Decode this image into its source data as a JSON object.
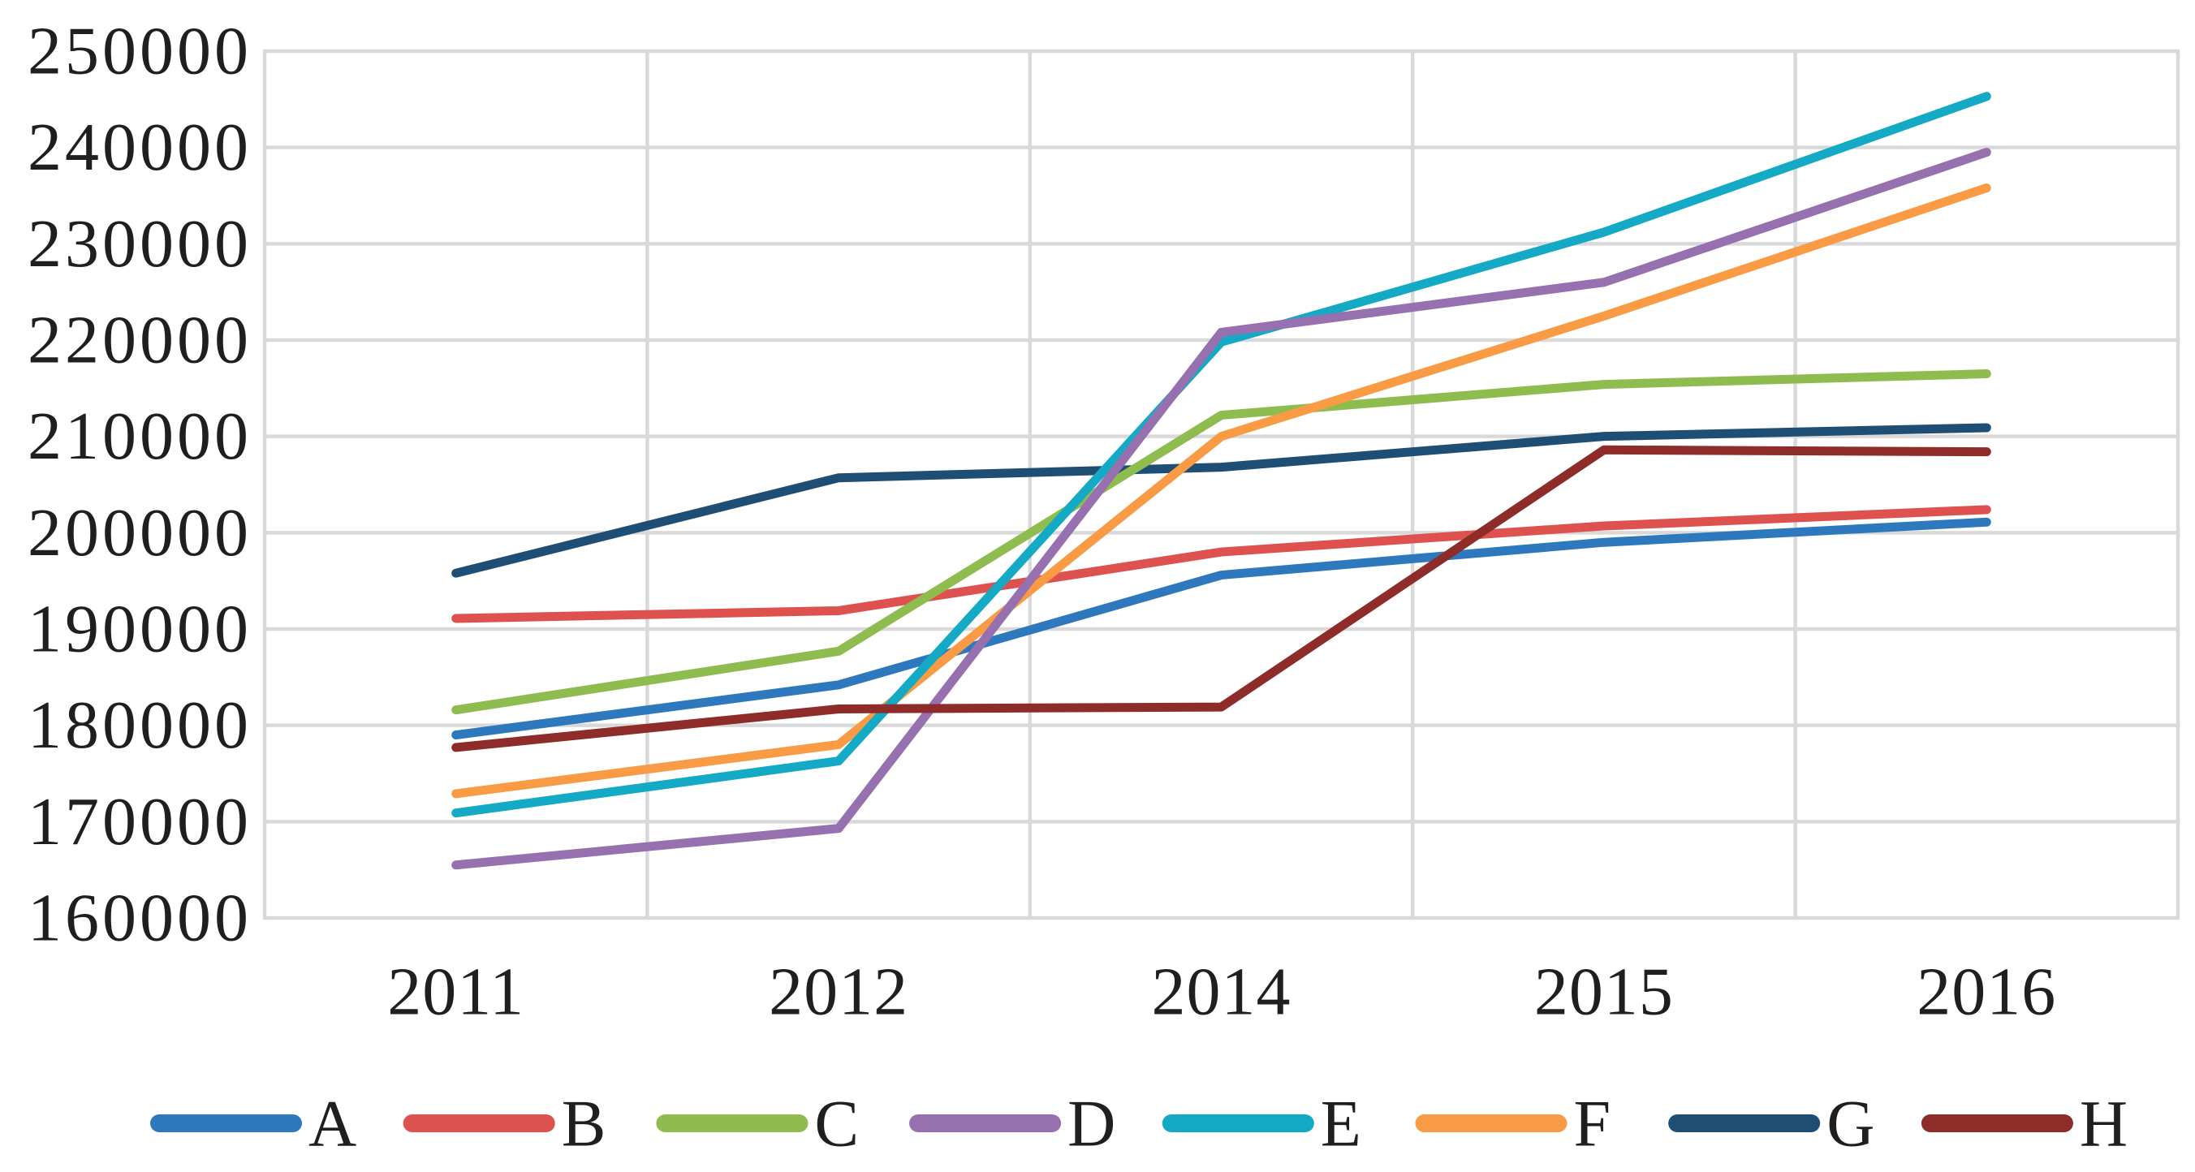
{
  "page": {
    "background": "#ffffff",
    "text_color": "#1f1f1f"
  },
  "chart_data": {
    "type": "line",
    "title": "",
    "xlabel": "",
    "ylabel": "",
    "categories": [
      "2011",
      "2012",
      "2014",
      "2015",
      "2016"
    ],
    "x_axis": {
      "tick_labels": [
        "2011",
        "2012",
        "2014",
        "2015",
        "2016"
      ]
    },
    "y_axis": {
      "min": 160000,
      "max": 250000,
      "step": 10000,
      "tick_labels": [
        "160000",
        "170000",
        "180000",
        "190000",
        "200000",
        "210000",
        "220000",
        "230000",
        "240000",
        "250000"
      ]
    },
    "ylim": [
      160000,
      250000
    ],
    "grid": {
      "horizontal": true,
      "vertical": true,
      "color": "#D9D9D9"
    },
    "legend": {
      "position": "bottom",
      "items": [
        "A",
        "B",
        "C",
        "D",
        "E",
        "F",
        "G",
        "H"
      ]
    },
    "series": [
      {
        "name": "A",
        "color": "#2E79BE",
        "values": [
          179000,
          184200,
          195600,
          199000,
          201100
        ]
      },
      {
        "name": "B",
        "color": "#DD514F",
        "values": [
          191100,
          191900,
          198000,
          200700,
          202400
        ]
      },
      {
        "name": "C",
        "color": "#8FBC4F",
        "values": [
          181600,
          187700,
          212200,
          215400,
          216500
        ]
      },
      {
        "name": "D",
        "color": "#9770B0",
        "values": [
          165500,
          169300,
          220800,
          226000,
          239500
        ]
      },
      {
        "name": "E",
        "color": "#14AAC5",
        "values": [
          170900,
          176300,
          219800,
          231200,
          245300
        ]
      },
      {
        "name": "F",
        "color": "#F99B45",
        "values": [
          172900,
          178000,
          210000,
          222500,
          235800
        ]
      },
      {
        "name": "G",
        "color": "#1F4E74",
        "values": [
          195800,
          205700,
          206800,
          210000,
          210900
        ]
      },
      {
        "name": "H",
        "color": "#8E2C29",
        "values": [
          177700,
          181700,
          181900,
          208600,
          208400
        ]
      }
    ]
  }
}
